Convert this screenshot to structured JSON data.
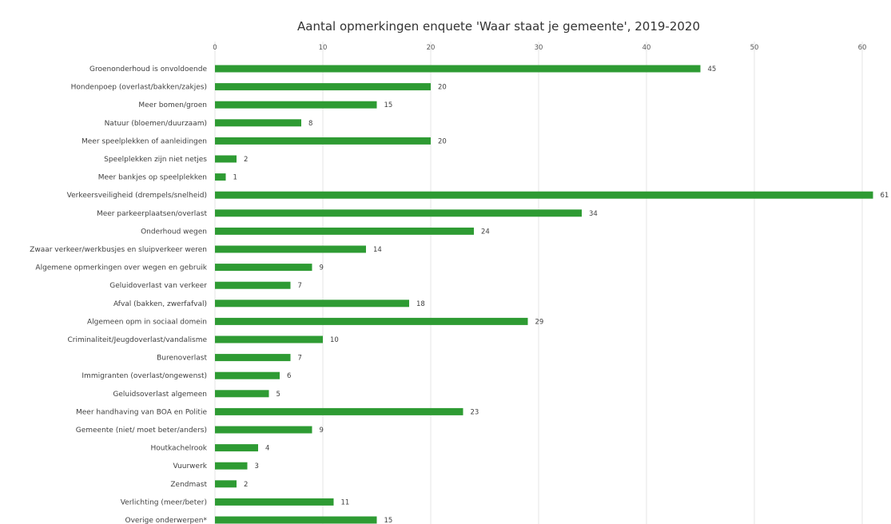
{
  "chart_data": {
    "type": "bar",
    "orientation": "horizontal",
    "title": "Aantal opmerkingen enquete 'Waar staat je gemeente', 2019-2020",
    "xlabel": "",
    "ylabel": "",
    "xlim": [
      0,
      60
    ],
    "xticks": [
      0,
      10,
      20,
      30,
      40,
      50,
      60
    ],
    "x_axis_position": "top",
    "grid": true,
    "legend": "none",
    "bar_color": "#2e9b33",
    "data_labels": true,
    "categories": [
      "Groenonderhoud is onvoldoende",
      "Hondenpoep (overlast/bakken/zakjes)",
      "Meer bomen/groen",
      "Natuur (bloemen/duurzaam)",
      "Meer speelplekken of aanleidingen",
      "Speelplekken zijn niet netjes",
      "Meer bankjes op speelplekken",
      "Verkeersveiligheid (drempels/snelheid)",
      "Meer parkeerplaatsen/overlast",
      "Onderhoud wegen",
      "Zwaar verkeer/werkbusjes en sluipverkeer  weren",
      "Algemene opmerkingen over wegen en gebruik",
      "Geluidoverlast van verkeer",
      "Afval (bakken, zwerfafval)",
      "Algemeen opm in sociaal domein",
      "Criminaliteit/Jeugdoverlast/vandalisme",
      "Burenoverlast",
      "Immigranten (overlast/ongewenst)",
      "Geluidsoverlast algemeen",
      "Meer handhaving van BOA en Politie",
      "Gemeente (niet/ moet beter/anders)",
      "Houtkachelrook",
      "Vuurwerk",
      "Zendmast",
      "Verlichting (meer/beter)",
      "Overige onderwerpen*"
    ],
    "values": [
      45,
      20,
      15,
      8,
      20,
      2,
      1,
      61,
      34,
      24,
      14,
      9,
      7,
      18,
      29,
      10,
      7,
      6,
      5,
      23,
      9,
      4,
      3,
      2,
      11,
      15
    ]
  }
}
